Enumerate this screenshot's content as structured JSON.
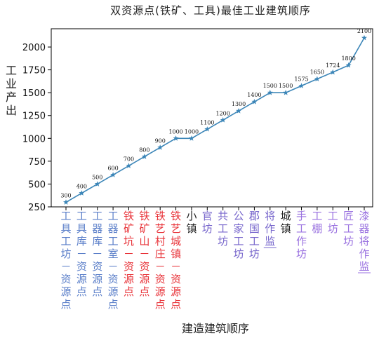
{
  "chart_data": {
    "type": "line",
    "title": "双资源点(铁矿、工具)最佳工业建筑顺序",
    "xlabel": "建造建筑顺序",
    "ylabel": "工业产出",
    "ylim": [
      250,
      2200
    ],
    "yticks": [
      250,
      500,
      750,
      1000,
      1250,
      1500,
      1750,
      2000
    ],
    "grid": false,
    "categories": [
      "工具工坊－资源点",
      "工具库－资源点",
      "工器库－资源点",
      "工器工室－资源点",
      "铁矿坑－资源点",
      "铁矿山－资源点",
      "铁艺村庄－资源点",
      "铁艺城镇－资源点",
      "小镇",
      "官坊",
      "共工坊",
      "公家工坊",
      "郡国工坊",
      "将作监",
      "城镇",
      "手工作坊",
      "工棚",
      "工坊",
      "匠工坊",
      "漆器将作监"
    ],
    "category_colors": [
      "#5b7fc9",
      "#5b7fc9",
      "#5b7fc9",
      "#5b7fc9",
      "#e8343a",
      "#e8343a",
      "#e8343a",
      "#e8343a",
      "#222222",
      "#7766cc",
      "#7766cc",
      "#7766cc",
      "#7766cc",
      "#7766cc",
      "#222222",
      "#9a72e0",
      "#9a72e0",
      "#9a72e0",
      "#9a72e0",
      "#9a72e0"
    ],
    "underlined": [
      13,
      19
    ],
    "series": [
      {
        "color": "#3c86b8",
        "values": [
          300,
          400,
          500,
          600,
          700,
          800,
          900,
          1000,
          1000,
          1100,
          1200,
          1300,
          1400,
          1500,
          1500,
          1575,
          1650,
          1724,
          1800,
          2100
        ]
      }
    ]
  }
}
